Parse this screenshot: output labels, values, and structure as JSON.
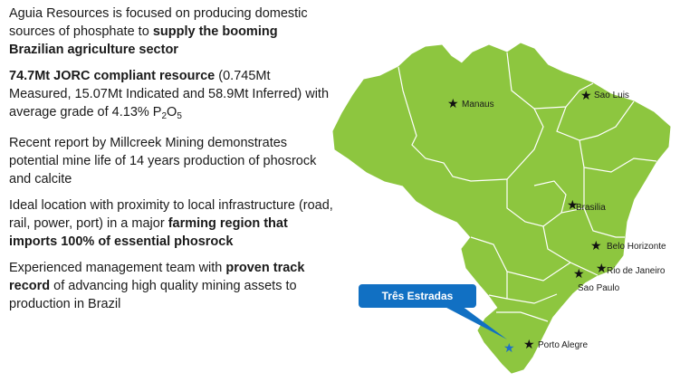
{
  "text": {
    "p1": {
      "a": "Aguia Resources is focused on producing domestic sources of phosphate to ",
      "b": "supply the booming Brazilian agriculture sector"
    },
    "p2": {
      "a": "74.7Mt JORC compliant resource",
      "b": " (0.745Mt Measured, 15.07Mt Indicated and 58.9Mt Inferred) with average grade of 4.13% P",
      "c": "2",
      "d": "O",
      "e": "5"
    },
    "p3": {
      "a": "Recent report by Millcreek Mining demonstrates potential mine life of 14 years production of phosrock and calcite"
    },
    "p4": {
      "a": "Ideal location with proximity to local infrastructure (road, rail, power, port) in a major ",
      "b": "farming region that imports 100% of essential phosrock"
    },
    "p5": {
      "a": "Experienced management team with ",
      "b": "proven track record",
      "c": " of advancing high quality mining assets to production in Brazil"
    }
  },
  "map": {
    "land_color": "#8dc63f",
    "border_color": "#ffffff",
    "star_color": "#111111",
    "highlight_star_color": "#1f6fc7",
    "callout_color": "#1170c3",
    "callout_label": "Três Estradas",
    "cities": {
      "manaus": "Manaus",
      "sao_luis": "Sao Luis",
      "brasilia": "Brasilia",
      "belo_horizonte": "Belo Horizonte",
      "rio": "Rio de Janeiro",
      "sao_paulo": "Sao Paulo",
      "porto_alegre": "Porto Alegre"
    }
  }
}
